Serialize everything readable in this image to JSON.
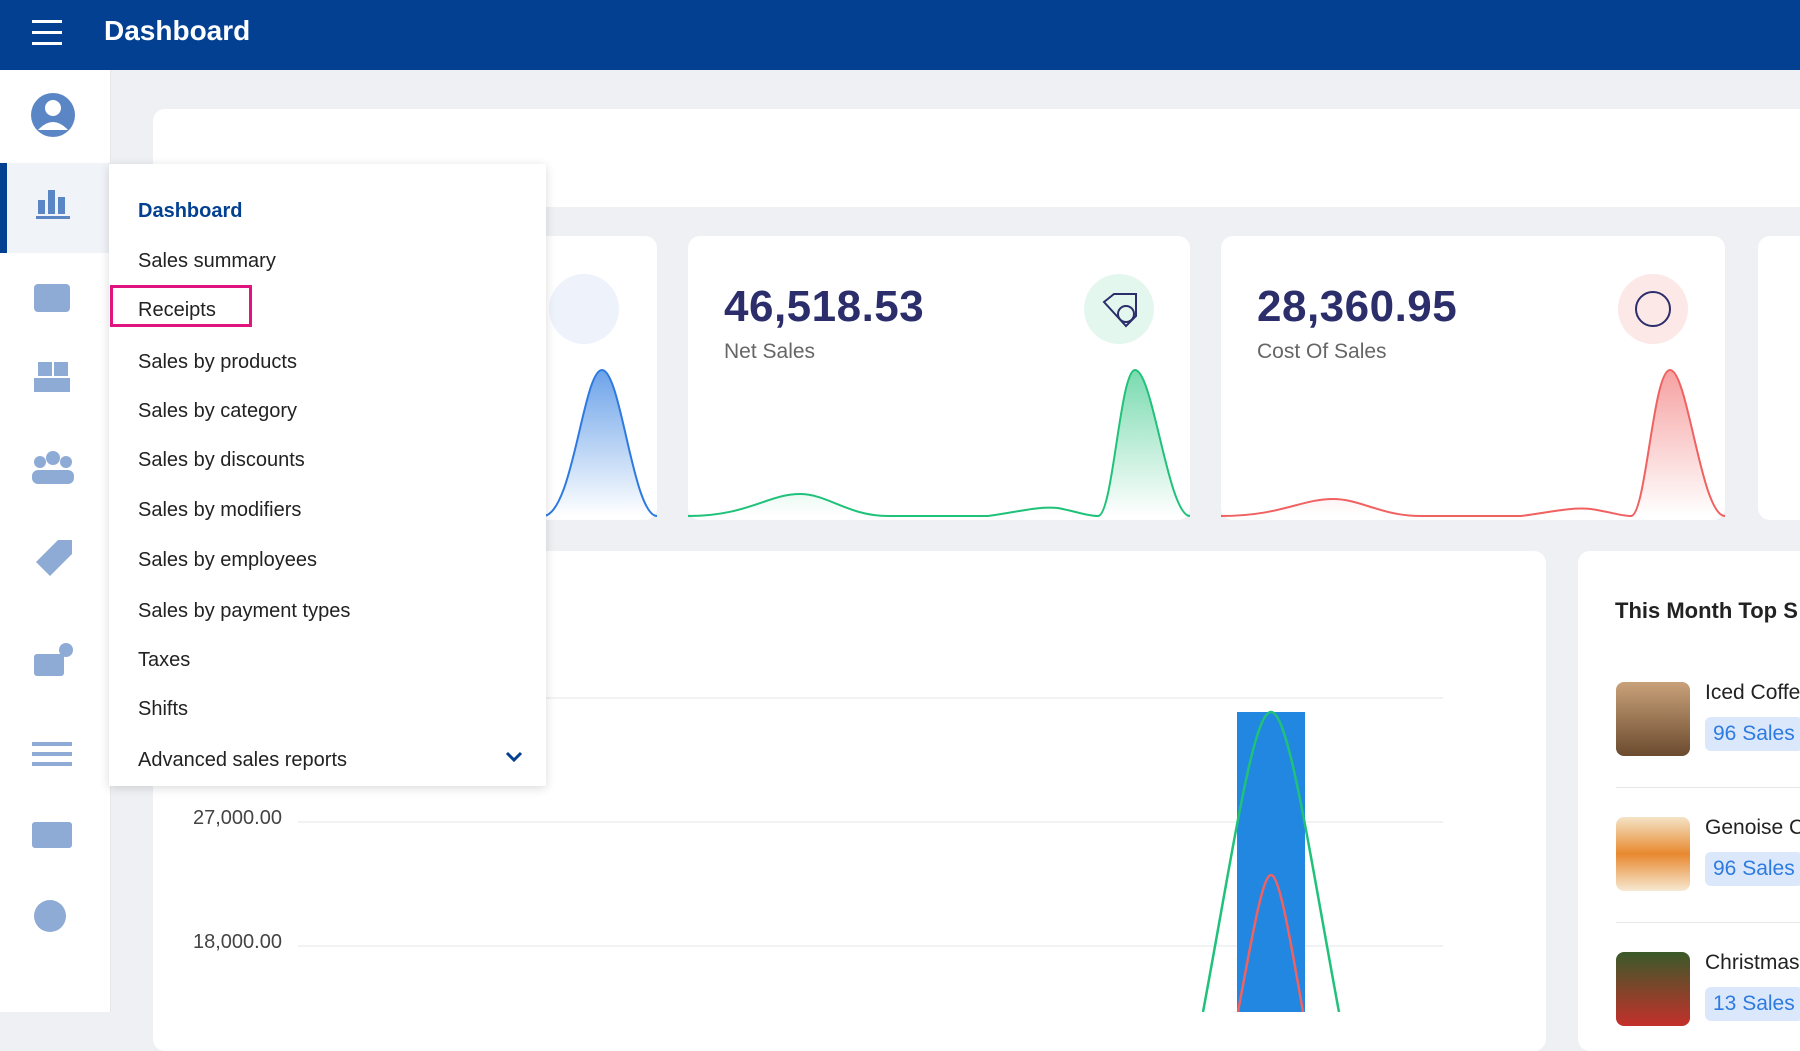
{
  "header": {
    "title": "Dashboard"
  },
  "menu": {
    "items": [
      "Dashboard",
      "Sales summary",
      "Receipts",
      "Sales by products",
      "Sales by category",
      "Sales by discounts",
      "Sales by modifiers",
      "Sales by employees",
      "Sales by payment types",
      "Taxes",
      "Shifts",
      "Advanced sales reports"
    ]
  },
  "cards": [
    {
      "value": "46,518.53",
      "label": "Net Sales"
    },
    {
      "value": "28,360.95",
      "label": "Cost Of Sales"
    }
  ],
  "chart": {
    "y_labels": [
      "27,000.00",
      "18,000.00"
    ]
  },
  "top_sales": {
    "title": "This Month Top S",
    "items": [
      {
        "name": "Iced Coffe",
        "sales": "96 Sales"
      },
      {
        "name": "Genoise C",
        "sales": "96 Sales"
      },
      {
        "name": "Christmas",
        "sales": "13 Sales"
      }
    ]
  }
}
